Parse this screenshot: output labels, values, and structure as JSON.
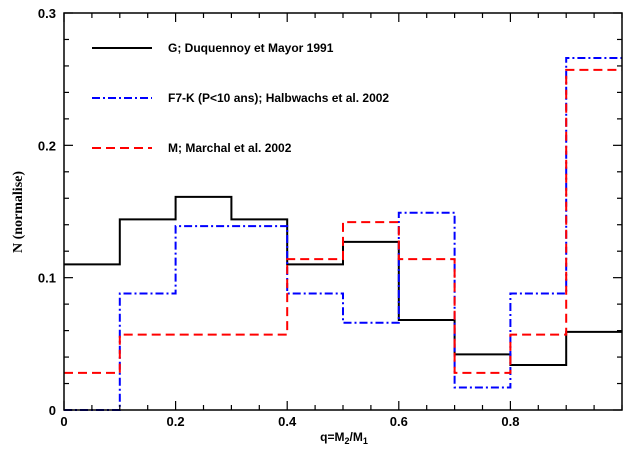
{
  "chart_data": {
    "type": "line",
    "subtype": "step-histogram",
    "title": "",
    "xlabel": "q=M2/M1",
    "xlabel_parts": {
      "base1": "q=M",
      "sub1": "2",
      "mid": "/M",
      "sub2": "1"
    },
    "ylabel": "N (normalise)",
    "xlim": [
      0,
      1
    ],
    "ylim": [
      0,
      0.3
    ],
    "xticks": [
      0,
      0.2,
      0.4,
      0.6,
      0.8
    ],
    "xtick_labels": [
      "0",
      "0.2",
      "0.4",
      "0.6",
      "0.8"
    ],
    "yticks": [
      0,
      0.1,
      0.2,
      0.3
    ],
    "ytick_labels": [
      "0",
      "0.1",
      "0.2",
      "0.3"
    ],
    "grid": false,
    "legend_position": "top-left",
    "bin_edges": [
      0,
      0.1,
      0.2,
      0.3,
      0.4,
      0.5,
      0.6,
      0.7,
      0.8,
      0.9,
      1.0
    ],
    "series": [
      {
        "name": "G; Duquennoy et Mayor 1991",
        "color": "#000000",
        "style": "solid",
        "values": [
          0.11,
          0.144,
          0.161,
          0.144,
          0.11,
          0.127,
          0.068,
          0.042,
          0.034,
          0.059
        ]
      },
      {
        "name": "F7-K (P<10 ans); Halbwachs et al. 2002",
        "color": "#0000ff",
        "style": "dash-dot",
        "values": [
          0.0,
          0.088,
          0.139,
          0.139,
          0.088,
          0.066,
          0.149,
          0.017,
          0.088,
          0.266
        ]
      },
      {
        "name": "M; Marchal et al. 2002",
        "color": "#ff0000",
        "style": "dashed",
        "values": [
          0.028,
          0.057,
          0.057,
          0.057,
          0.114,
          0.142,
          0.114,
          0.028,
          0.057,
          0.257
        ]
      }
    ]
  }
}
